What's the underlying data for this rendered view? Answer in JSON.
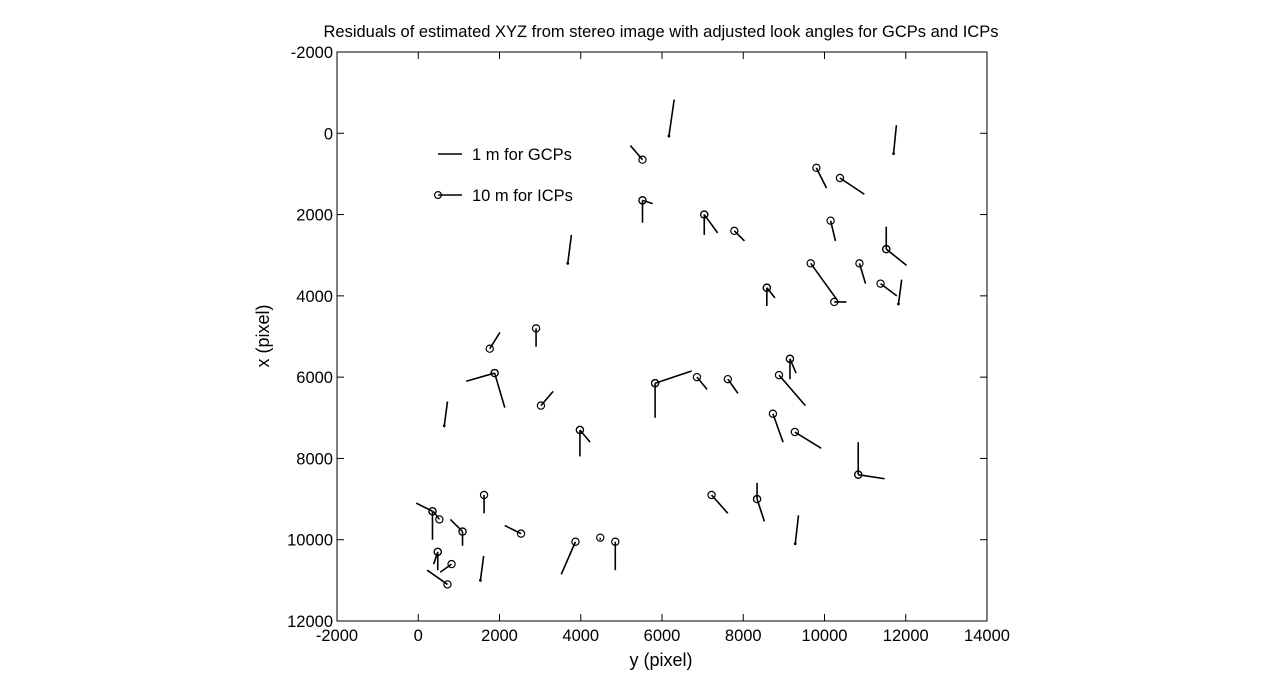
{
  "chart_data": {
    "type": "scatter",
    "title": "Residuals of estimated XYZ from stereo image with adjusted look angles for GCPs and ICPs",
    "xlabel": "y (pixel)",
    "ylabel": "x (pixel)",
    "xlim": [
      -2000,
      14000
    ],
    "ylim": [
      -2000,
      12000
    ],
    "y_axis_reversed": true,
    "x_ticks": [
      "-2000",
      "0",
      "2000",
      "4000",
      "6000",
      "8000",
      "10000",
      "12000",
      "14000"
    ],
    "y_ticks": [
      "-2000",
      "0",
      "2000",
      "4000",
      "6000",
      "8000",
      "10000",
      "12000"
    ],
    "grid": false,
    "legend_placement": "top-left",
    "legend": [
      {
        "label": "1 m for GCPs",
        "marker": "dot",
        "line_color": "#000000"
      },
      {
        "label": "10 m for ICPs",
        "marker": "circle",
        "line_color": "#000000"
      }
    ],
    "series": [
      {
        "name": "1 m for GCPs",
        "marker": "dot",
        "points": [
          {
            "y": 6170,
            "x": 70,
            "dy": 130,
            "dx": -900
          },
          {
            "y": 11700,
            "x": 500,
            "dy": 70,
            "dx": -700
          },
          {
            "y": 3680,
            "x": 3200,
            "dy": 90,
            "dx": -700
          },
          {
            "y": 11820,
            "x": 4200,
            "dy": 80,
            "dx": -600
          },
          {
            "y": 640,
            "x": 7200,
            "dy": 80,
            "dx": -600
          },
          {
            "y": 1530,
            "x": 11000,
            "dy": 80,
            "dx": -600
          },
          {
            "y": 9280,
            "x": 10100,
            "dy": 80,
            "dx": -700
          }
        ]
      },
      {
        "name": "10 m for ICPs",
        "marker": "circle",
        "points": [
          {
            "y": 5520,
            "x": 650,
            "dy": -300,
            "dx": -350
          },
          {
            "y": 5520,
            "x": 1650,
            "dy": 0,
            "dx": 550
          },
          {
            "y": 5520,
            "x": 1650,
            "dy": 250,
            "dx": 80
          },
          {
            "y": 7040,
            "x": 2000,
            "dy": 0,
            "dx": 500
          },
          {
            "y": 7040,
            "x": 2000,
            "dy": 330,
            "dx": 450
          },
          {
            "y": 7780,
            "x": 2400,
            "dy": 250,
            "dx": 250
          },
          {
            "y": 9800,
            "x": 850,
            "dy": 250,
            "dx": 500
          },
          {
            "y": 10380,
            "x": 1100,
            "dy": 600,
            "dx": 400
          },
          {
            "y": 10150,
            "x": 2150,
            "dy": 120,
            "dx": 500
          },
          {
            "y": 11520,
            "x": 2850,
            "dy": -0.1,
            "dx": -550
          },
          {
            "y": 11520,
            "x": 2850,
            "dy": 500,
            "dx": 400
          },
          {
            "y": 10860,
            "x": 3200,
            "dy": 150,
            "dx": 500
          },
          {
            "y": 9660,
            "x": 3200,
            "dy": 650,
            "dx": 900
          },
          {
            "y": 10240,
            "x": 4150,
            "dy": 300,
            "dx": 0
          },
          {
            "y": 11380,
            "x": 3700,
            "dy": 400,
            "dx": 300
          },
          {
            "y": 8580,
            "x": 3800,
            "dy": 0,
            "dx": 450
          },
          {
            "y": 8580,
            "x": 3800,
            "dy": 200,
            "dx": 250
          },
          {
            "y": 1760,
            "x": 5300,
            "dy": 250,
            "dx": -400
          },
          {
            "y": 2900,
            "x": 4800,
            "dy": 0,
            "dx": 450
          },
          {
            "y": 1880,
            "x": 5900,
            "dy": -700,
            "dx": 200
          },
          {
            "y": 1880,
            "x": 5900,
            "dy": 250,
            "dx": 850
          },
          {
            "y": 3020,
            "x": 6700,
            "dy": 300,
            "dx": -350
          },
          {
            "y": 3980,
            "x": 7300,
            "dy": 0,
            "dx": 650
          },
          {
            "y": 3980,
            "x": 7300,
            "dy": 250,
            "dx": 300
          },
          {
            "y": 5830,
            "x": 6150,
            "dy": 900,
            "dx": -300
          },
          {
            "y": 5830,
            "x": 6150,
            "dy": 0,
            "dx": 850
          },
          {
            "y": 6860,
            "x": 6000,
            "dy": 250,
            "dx": 300
          },
          {
            "y": 7620,
            "x": 6050,
            "dy": 250,
            "dx": 350
          },
          {
            "y": 9150,
            "x": 5550,
            "dy": 0,
            "dx": 500
          },
          {
            "y": 9150,
            "x": 5550,
            "dy": 150,
            "dx": 350
          },
          {
            "y": 8880,
            "x": 5950,
            "dy": 650,
            "dx": 750
          },
          {
            "y": 8730,
            "x": 6900,
            "dy": 250,
            "dx": 700
          },
          {
            "y": 9270,
            "x": 7350,
            "dy": 650,
            "dx": 400
          },
          {
            "y": 10830,
            "x": 8400,
            "dy": 0,
            "dx": -800
          },
          {
            "y": 10830,
            "x": 8400,
            "dy": 650,
            "dx": 100
          },
          {
            "y": 1620,
            "x": 8900,
            "dy": 0,
            "dx": 450
          },
          {
            "y": 7220,
            "x": 8900,
            "dy": 400,
            "dx": 450
          },
          {
            "y": 8340,
            "x": 9000,
            "dy": 0,
            "dx": -400
          },
          {
            "y": 8340,
            "x": 9000,
            "dy": 180,
            "dx": 550
          },
          {
            "y": 350,
            "x": 9300,
            "dy": 0,
            "dx": 700
          },
          {
            "y": 350,
            "x": 9300,
            "dy": -400,
            "dx": -200
          },
          {
            "y": 520,
            "x": 9500,
            "dy": -150,
            "dx": -200
          },
          {
            "y": 1090,
            "x": 9800,
            "dy": 0,
            "dx": 350
          },
          {
            "y": 1090,
            "x": 9800,
            "dy": -300,
            "dx": -300
          },
          {
            "y": 2530,
            "x": 9850,
            "dy": -400,
            "dx": -200
          },
          {
            "y": 3870,
            "x": 10050,
            "dy": -350,
            "dx": 800
          },
          {
            "y": 4480,
            "x": 9950,
            "dy": 0,
            "dx": 50
          },
          {
            "y": 4850,
            "x": 10050,
            "dy": 0,
            "dx": 700
          },
          {
            "y": 480,
            "x": 10300,
            "dy": 0,
            "dx": 450
          },
          {
            "y": 480,
            "x": 10300,
            "dy": -100,
            "dx": 300
          },
          {
            "y": 820,
            "x": 10600,
            "dy": -280,
            "dx": 200
          },
          {
            "y": 720,
            "x": 11100,
            "dy": -500,
            "dx": -350
          }
        ]
      }
    ]
  }
}
